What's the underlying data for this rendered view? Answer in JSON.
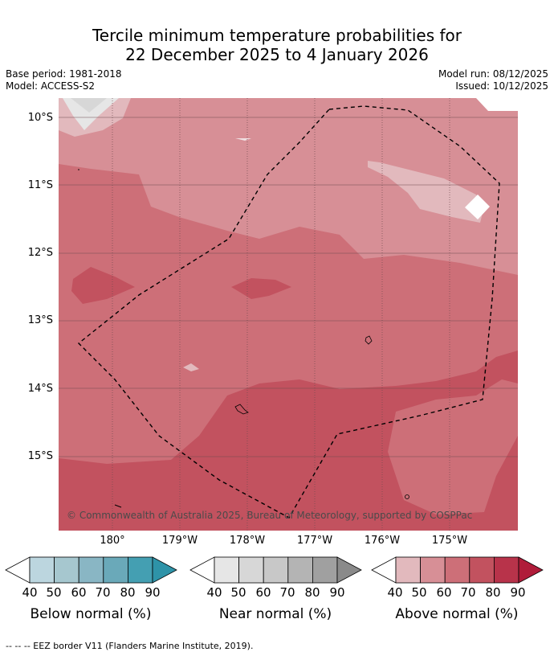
{
  "title_line1": "Tercile minimum temperature probabilities for",
  "title_line2": "22 December 2025 to 4 January 2026",
  "base_period": "Base period: 1981-2018",
  "model": "Model: ACCESS-S2",
  "model_run": "Model run: 08/12/2025",
  "issued": "Issued: 10/12/2025",
  "lat_labels": [
    "10°S",
    "11°S",
    "12°S",
    "13°S",
    "14°S",
    "15°S"
  ],
  "lon_labels": [
    "180°",
    "179°W",
    "178°W",
    "177°W",
    "176°W",
    "175°W"
  ],
  "copyright": "© Commonwealth of Australia 2025, Bureau of Meteorology, supported by COSPPac",
  "colorbars": [
    {
      "title": "Below normal (%)",
      "ticks": [
        "40",
        "50",
        "60",
        "70",
        "80",
        "90"
      ],
      "colors": [
        "#bcd6df",
        "#a6c7cf",
        "#89b6c4",
        "#6aa9b9",
        "#449fb2"
      ],
      "over": "#2e93a8"
    },
    {
      "title": "Near normal (%)",
      "ticks": [
        "40",
        "50",
        "60",
        "70",
        "80",
        "90"
      ],
      "colors": [
        "#e6e6e6",
        "#d7d7d7",
        "#c8c8c8",
        "#b4b4b4",
        "#a0a0a0"
      ],
      "over": "#8a8a8a"
    },
    {
      "title": "Above normal (%)",
      "ticks": [
        "40",
        "50",
        "60",
        "70",
        "80",
        "90"
      ],
      "colors": [
        "#e2b9bd",
        "#d78f96",
        "#cd6f78",
        "#c2525f",
        "#b8334a"
      ],
      "over": "#b01c3a"
    }
  ],
  "colors": {
    "above_50": "#d78f96",
    "above_40": "#e2b9bd",
    "above_60": "#cd6f78",
    "above_70": "#c2525f",
    "near_40": "#e6e6e6"
  },
  "footer": "--  --  -- EEZ border V11 (Flanders Marine Institute, 2019)."
}
